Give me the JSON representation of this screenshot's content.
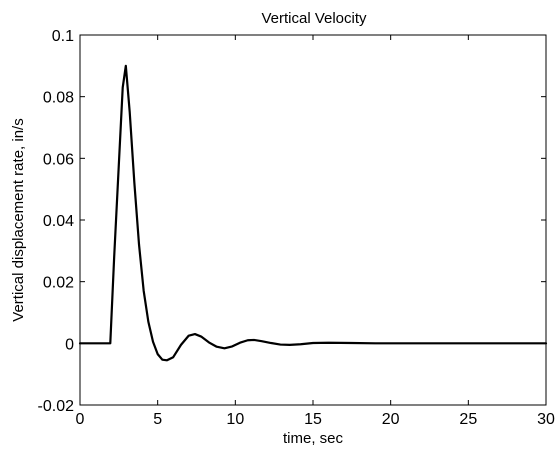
{
  "chart_data": {
    "type": "line",
    "title": "Vertical Velocity",
    "xlabel": "time, sec",
    "ylabel": "Vertical displacement rate, in/s",
    "xlim": [
      0,
      30
    ],
    "ylim": [
      -0.02,
      0.1
    ],
    "x_ticks": [
      "0",
      "5",
      "10",
      "15",
      "20",
      "25",
      "30"
    ],
    "y_ticks": [
      "-0.02",
      "0",
      "0.02",
      "0.04",
      "0.06",
      "0.08",
      "0.1"
    ],
    "x_tick_values": [
      0,
      5,
      10,
      15,
      20,
      25,
      30
    ],
    "y_tick_values": [
      -0.02,
      0,
      0.02,
      0.04,
      0.06,
      0.08,
      0.1
    ],
    "grid": false,
    "series": [
      {
        "color": "#000000",
        "x": [
          0,
          1.95,
          2.2,
          2.5,
          2.75,
          2.95,
          3.2,
          3.5,
          3.8,
          4.1,
          4.4,
          4.7,
          5.0,
          5.3,
          5.6,
          6.0,
          6.5,
          7.0,
          7.4,
          7.8,
          8.3,
          8.8,
          9.3,
          9.8,
          10.3,
          10.8,
          11.2,
          11.7,
          12.3,
          12.9,
          13.5,
          14.2,
          15.0,
          16.0,
          17.5,
          19.0,
          21.0,
          30.0
        ],
        "y": [
          0,
          0,
          0.028,
          0.058,
          0.083,
          0.09,
          0.075,
          0.052,
          0.032,
          0.017,
          0.007,
          0.0005,
          -0.0035,
          -0.0053,
          -0.0055,
          -0.0045,
          -0.0005,
          0.0025,
          0.003,
          0.0022,
          0.0003,
          -0.0011,
          -0.0016,
          -0.001,
          0.0002,
          0.001,
          0.0011,
          0.0007,
          0.0001,
          -0.0004,
          -0.0005,
          -0.0003,
          0.0001,
          0.0002,
          0.0001,
          0,
          0,
          0
        ]
      }
    ]
  }
}
